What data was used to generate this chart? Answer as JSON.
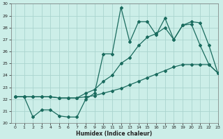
{
  "xlabel": "Humidex (Indice chaleur)",
  "ylabel": "",
  "background_color": "#cceee8",
  "grid_color": "#aad4ce",
  "line_color": "#1a6b5e",
  "x_values": [
    0,
    1,
    2,
    3,
    4,
    5,
    6,
    7,
    8,
    9,
    10,
    11,
    12,
    13,
    14,
    15,
    16,
    17,
    18,
    19,
    20,
    21,
    22,
    23
  ],
  "line1_jagged": [
    22.2,
    22.2,
    20.5,
    21.1,
    21.1,
    20.6,
    20.5,
    20.5,
    22.0,
    22.5,
    25.8,
    25.8,
    29.7,
    26.8,
    28.5,
    28.5,
    27.4,
    28.8,
    27.0,
    28.2,
    28.3,
    26.5,
    24.9,
    24.2
  ],
  "line2_diagonal": [
    22.2,
    22.2,
    22.2,
    22.2,
    22.2,
    22.1,
    22.1,
    22.1,
    22.2,
    22.3,
    22.5,
    22.7,
    22.9,
    23.2,
    23.5,
    23.8,
    24.1,
    24.4,
    24.7,
    24.9,
    24.9,
    24.9,
    24.9,
    24.2
  ],
  "line3_curved": [
    22.2,
    22.2,
    22.2,
    22.2,
    22.2,
    22.1,
    22.1,
    22.1,
    22.5,
    22.8,
    23.5,
    24.0,
    25.0,
    25.5,
    26.5,
    27.2,
    27.5,
    28.0,
    27.0,
    28.2,
    28.5,
    28.4,
    26.5,
    24.2
  ],
  "ylim": [
    20,
    30
  ],
  "xlim": [
    -0.5,
    23
  ],
  "yticks": [
    20,
    21,
    22,
    23,
    24,
    25,
    26,
    27,
    28,
    29,
    30
  ],
  "xticks": [
    0,
    1,
    2,
    3,
    4,
    5,
    6,
    7,
    8,
    9,
    10,
    11,
    12,
    13,
    14,
    15,
    16,
    17,
    18,
    19,
    20,
    21,
    22,
    23
  ]
}
